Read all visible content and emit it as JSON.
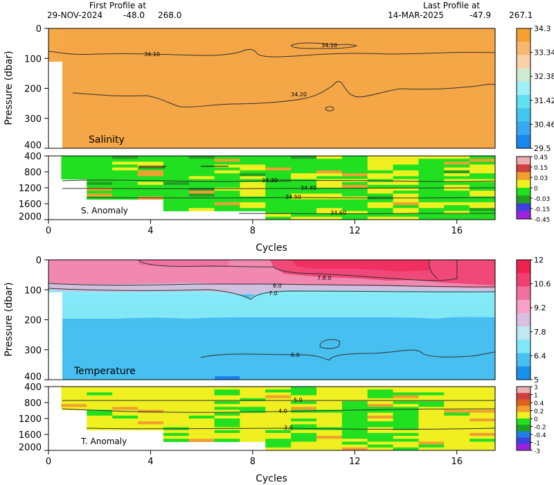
{
  "header": {
    "first_label": "First Profile at",
    "first_date": "29-NOV-2024",
    "first_lat": "-48.0",
    "first_lon": "268.0",
    "last_label": "Last Profile at",
    "last_date": "14-MAR-2025",
    "last_lat": "-47.9",
    "last_lon": "267.1"
  },
  "chart_data": [
    {
      "type": "heatmap",
      "panel_label": "Salinity",
      "ylabel": "Pressure (dbar)",
      "ylim": [
        400,
        0
      ],
      "yticks": [
        "0",
        "100",
        "200",
        "300",
        "400"
      ],
      "xlim": [
        0,
        17.5
      ],
      "colorbar": {
        "labels": [
          "34.3",
          "33.34",
          "32.38",
          "31.42",
          "30.46",
          "29.5"
        ],
        "colors": [
          "#f5a030",
          "#f8b870",
          "#f9d0a8",
          "#d0ead0",
          "#a0f0f8",
          "#60e0f0",
          "#40c8f0",
          "#38a8f0",
          "#1888f0"
        ]
      },
      "contours": [
        {
          "label": "34.10",
          "pressure_approx": 80
        },
        {
          "label": "34.10",
          "pressure_approx": 60
        },
        {
          "label": "34.20",
          "pressure_approx": 220
        }
      ],
      "fill_color": "#f5a848",
      "grid": false
    },
    {
      "type": "heatmap",
      "panel_label": "S. Anomaly",
      "ylim": [
        2000,
        400
      ],
      "yticks": [
        "400",
        "800",
        "1200",
        "1600",
        "2000"
      ],
      "xlim": [
        0,
        17.5
      ],
      "colorbar": {
        "labels": [
          "0.45",
          "0.15",
          "0.03",
          "0",
          "-0.03",
          "-0.15",
          "-0.45"
        ],
        "colors": [
          "#e8b0b0",
          "#d04040",
          "#f0a030",
          "#f0f020",
          "#20e020",
          "#20a020",
          "#4040e0",
          "#a020e0"
        ]
      },
      "contours": [
        {
          "label": "34.30",
          "pressure_approx": 1000
        },
        {
          "label": "34.40",
          "pressure_approx": 1200
        },
        {
          "label": "34.50",
          "pressure_approx": 1450
        },
        {
          "label": "34.60",
          "pressure_approx": 1900
        }
      ],
      "xlabel": "Cycles",
      "xticks": [
        "0",
        "4",
        "8",
        "12",
        "16"
      ]
    },
    {
      "type": "heatmap",
      "panel_label": "Temperature",
      "ylabel": "Pressure (dbar)",
      "ylim": [
        400,
        0
      ],
      "yticks": [
        "0",
        "100",
        "200",
        "300",
        "400"
      ],
      "xlim": [
        0,
        17.5
      ],
      "colorbar": {
        "labels": [
          "12",
          "10.6",
          "9.2",
          "7.8",
          "6.4",
          "5"
        ],
        "colors": [
          "#f02050",
          "#f04070",
          "#f070a0",
          "#f8a0c8",
          "#d8c0e0",
          "#c0e8f0",
          "#80e8f8",
          "#48c0f0",
          "#1890f0"
        ]
      },
      "contours": [
        {
          "label": "8.0",
          "pressure_approx": 80
        },
        {
          "label": "7.0",
          "pressure_approx": 110
        },
        {
          "label": "7.8.0",
          "pressure_approx": 60
        },
        {
          "label": "6.0",
          "pressure_approx": 320
        }
      ]
    },
    {
      "type": "heatmap",
      "panel_label": "T. Anomaly",
      "ylim": [
        2000,
        400
      ],
      "yticks": [
        "400",
        "800",
        "1200",
        "1600",
        "2000"
      ],
      "xlim": [
        0,
        17.5
      ],
      "colorbar": {
        "labels": [
          "3",
          "1",
          "0.4",
          "0.2",
          "0",
          "-0.2",
          "-0.4",
          "-1",
          "-3"
        ],
        "colors": [
          "#e8b0b0",
          "#d04040",
          "#e06020",
          "#f0a030",
          "#f0f020",
          "#20e020",
          "#20a020",
          "#2080e0",
          "#4040e0",
          "#a020e0"
        ]
      },
      "contours": [
        {
          "label": "5.0",
          "pressure_approx": 800
        },
        {
          "label": "4.0",
          "pressure_approx": 1050
        },
        {
          "label": "3.0",
          "pressure_approx": 1500
        }
      ],
      "xlabel": "Cycles",
      "xticks": [
        "0",
        "4",
        "8",
        "12",
        "16"
      ]
    }
  ]
}
